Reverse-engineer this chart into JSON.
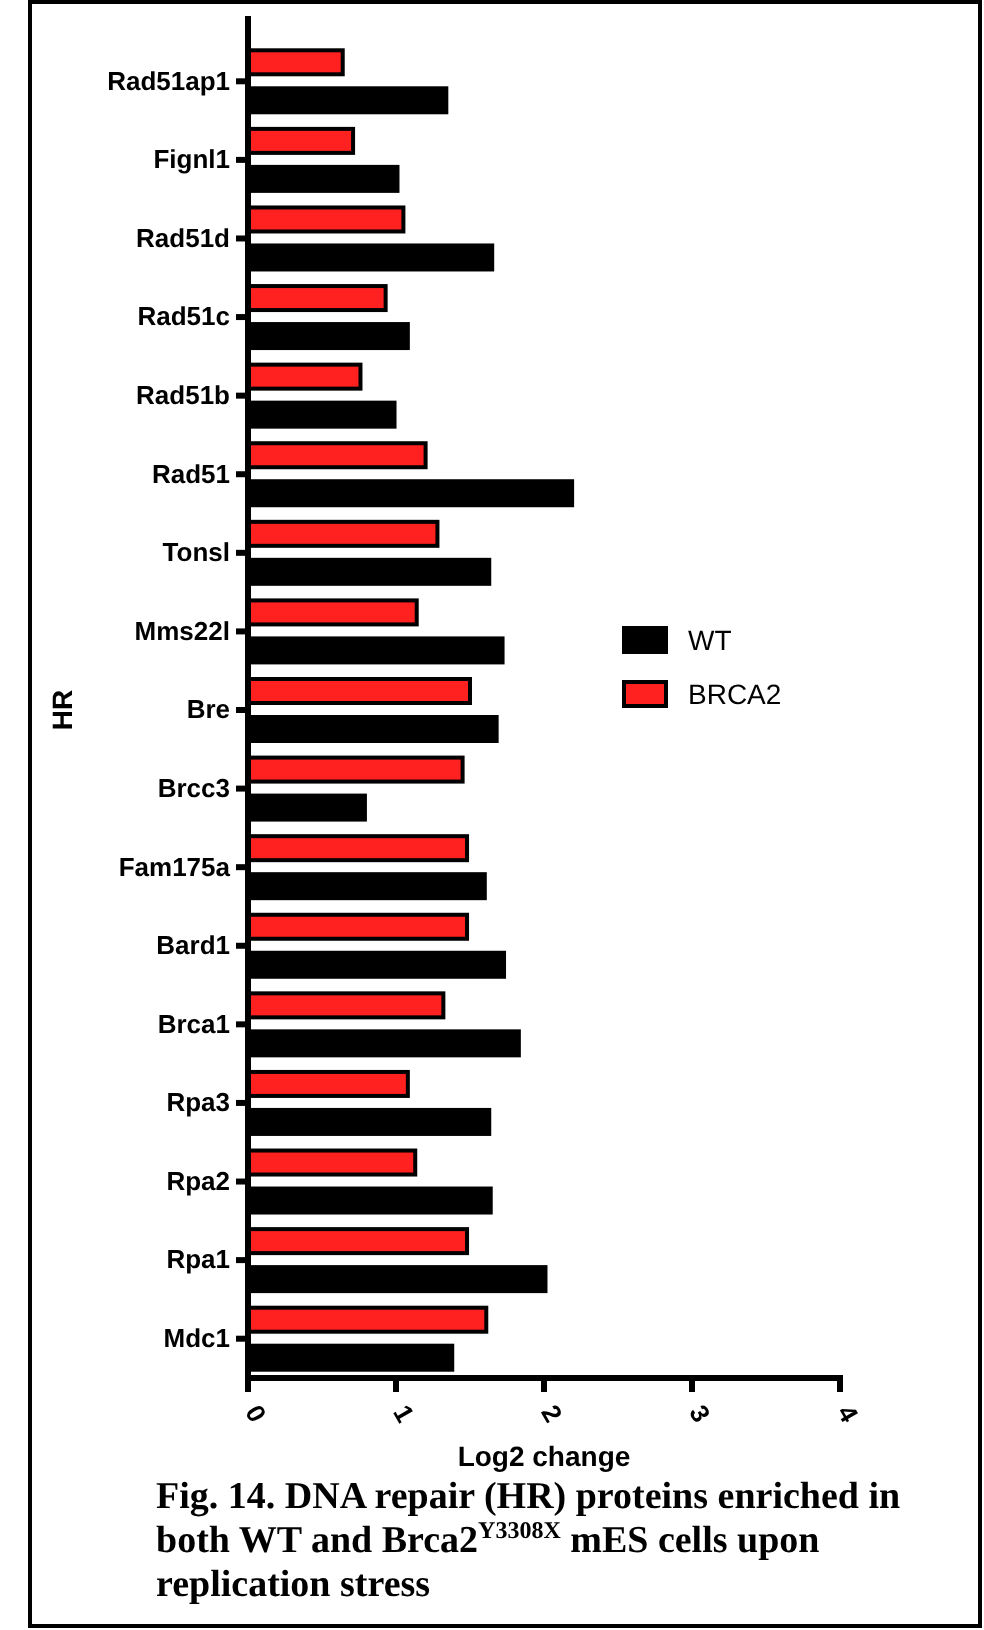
{
  "chart_data": {
    "type": "bar",
    "orientation": "horizontal",
    "title": "Fig. 14. DNA repair (HR) proteins enriched in both WT and Brca2$^{Y3308X}$ mES cells upon replication stress",
    "xlabel": "Log2 change",
    "ylabel": "HR",
    "categories": [
      "Rad51ap1",
      "Fignl1",
      "Rad51d",
      "Rad51c",
      "Rad51b",
      "Rad51",
      "Tonsl",
      "Mms22l",
      "Bre",
      "Brcc3",
      "Fam175a",
      "Bard1",
      "Brca1",
      "Rpa3",
      "Rpa2",
      "Rpa1",
      "Mdc1"
    ],
    "series": [
      {
        "name": "WT",
        "color": "#000000",
        "values": [
          1.34,
          1.01,
          1.65,
          1.08,
          0.99,
          2.19,
          1.63,
          1.72,
          1.68,
          0.79,
          1.6,
          1.73,
          1.83,
          1.63,
          1.64,
          2.01,
          1.38
        ]
      },
      {
        "name": "BRCA2",
        "color": "#ff2020",
        "values": [
          0.64,
          0.71,
          1.05,
          0.93,
          0.76,
          1.2,
          1.28,
          1.14,
          1.5,
          1.45,
          1.48,
          1.48,
          1.32,
          1.08,
          1.13,
          1.48,
          1.61
        ]
      }
    ],
    "xlim": [
      0,
      4
    ],
    "xticks": [
      0,
      1,
      2,
      3,
      4
    ],
    "legend": "right",
    "grid": false
  }
}
